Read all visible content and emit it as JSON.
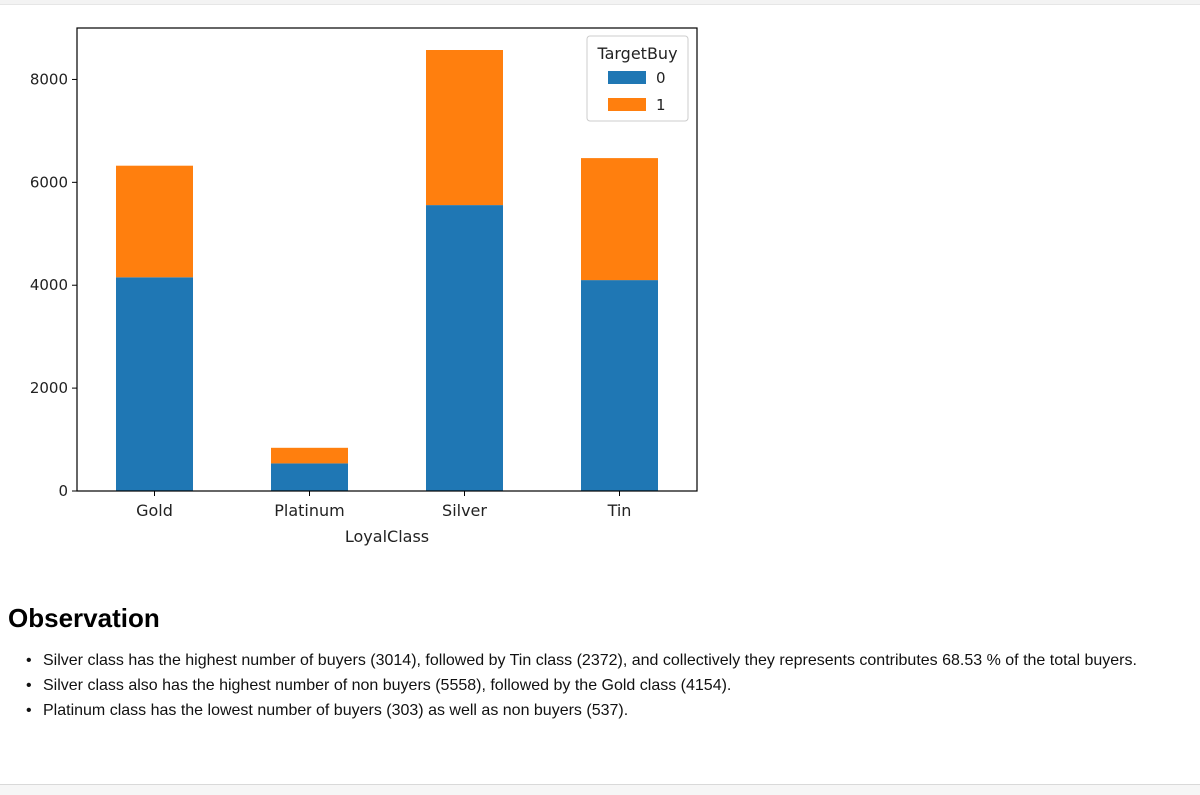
{
  "chart_data": {
    "type": "bar",
    "stacked": true,
    "categories": [
      "Gold",
      "Platinum",
      "Silver",
      "Tin"
    ],
    "series": [
      {
        "name": "0",
        "color": "#1f77b4",
        "values": [
          4154,
          537,
          5558,
          4100
        ]
      },
      {
        "name": "1",
        "color": "#ff7f0e",
        "values": [
          2170,
          303,
          3014,
          2372
        ]
      }
    ],
    "xlabel": "LoyalClass",
    "ylabel": "",
    "title": "",
    "legend_title": "TargetBuy",
    "legend_position": "top-right",
    "ylim": [
      0,
      9000
    ],
    "yticks": [
      0,
      2000,
      4000,
      6000,
      8000
    ],
    "grid": false
  },
  "observation": {
    "heading": "Observation",
    "bullets": [
      "Silver class has the highest number of buyers (3014), followed by Tin class (2372), and collectively they represents contributes 68.53 % of the total buyers.",
      "Silver class also has the highest number of non buyers (5558), followed by the Gold class (4154).",
      "Platinum class has the lowest number of buyers (303) as well as non buyers (537)."
    ]
  }
}
